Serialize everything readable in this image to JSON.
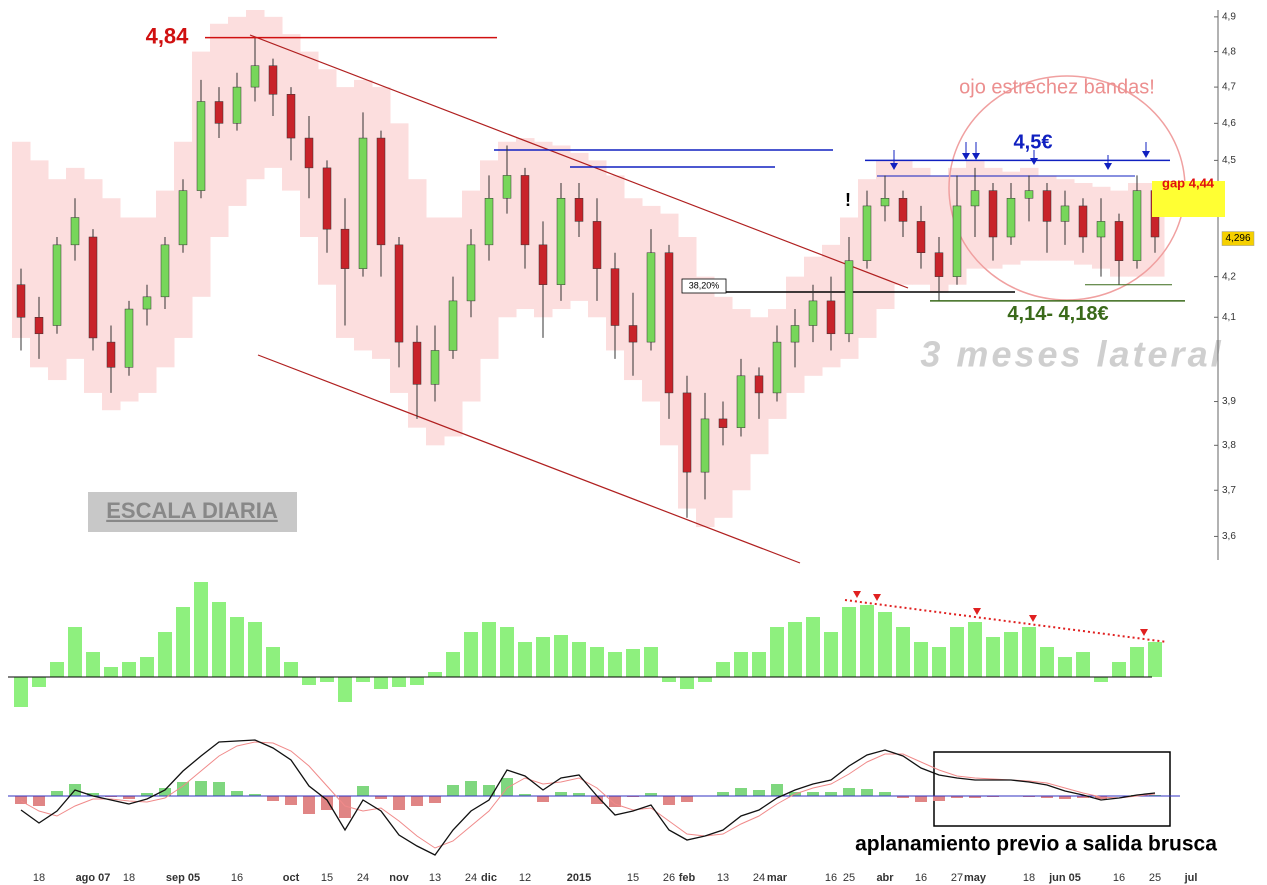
{
  "chart_data": [
    {
      "type": "candlestick",
      "categories": [
        null,
        "18",
        null,
        null,
        "ago 07",
        null,
        "18",
        null,
        null,
        "sep 05",
        null,
        null,
        "16",
        null,
        null,
        "oct",
        null,
        "15",
        null,
        "24",
        null,
        "nov",
        null,
        "13",
        null,
        "24",
        "dic",
        null,
        "12",
        null,
        null,
        "2015",
        null,
        null,
        "15",
        null,
        "26",
        "feb",
        null,
        "13",
        null,
        "24",
        "mar",
        null,
        null,
        "16",
        "25",
        null,
        "abr",
        null,
        "16",
        null,
        "27",
        "may",
        null,
        null,
        "18",
        null,
        "jun 05",
        null,
        null,
        "16",
        null,
        "25",
        null,
        "jul"
      ],
      "open": [
        4.18,
        4.1,
        4.08,
        4.28,
        4.3,
        4.04,
        3.98,
        4.12,
        4.15,
        4.28,
        4.42,
        4.66,
        4.6,
        4.7,
        4.76,
        4.68,
        4.56,
        4.48,
        4.32,
        4.22,
        4.56,
        4.28,
        4.04,
        3.94,
        4.02,
        4.14,
        4.28,
        4.4,
        4.46,
        4.28,
        4.18,
        4.4,
        4.34,
        4.22,
        4.08,
        4.04,
        4.26,
        3.92,
        3.74,
        3.86,
        3.84,
        3.96,
        3.92,
        4.04,
        4.08,
        4.14,
        4.06,
        4.24,
        4.38,
        4.4,
        4.34,
        4.26,
        4.2,
        4.38,
        4.42,
        4.3,
        4.4,
        4.42,
        4.34,
        4.38,
        4.3,
        4.34,
        4.24,
        4.42,
        null,
        null
      ],
      "high": [
        4.22,
        4.15,
        4.3,
        4.4,
        4.32,
        4.08,
        4.14,
        4.18,
        4.3,
        4.45,
        4.72,
        4.7,
        4.74,
        4.84,
        4.78,
        4.7,
        4.62,
        4.5,
        4.4,
        4.63,
        4.58,
        4.3,
        4.08,
        4.08,
        4.2,
        4.32,
        4.46,
        4.54,
        4.48,
        4.34,
        4.44,
        4.44,
        4.4,
        4.26,
        4.16,
        4.32,
        4.28,
        3.96,
        3.92,
        3.9,
        4.0,
        3.98,
        4.08,
        4.12,
        4.18,
        4.2,
        4.3,
        4.42,
        4.46,
        4.42,
        4.38,
        4.3,
        4.46,
        4.48,
        4.44,
        4.44,
        4.46,
        4.44,
        4.42,
        4.4,
        4.4,
        4.36,
        4.46,
        4.44,
        null,
        null
      ],
      "low": [
        4.02,
        4.0,
        4.06,
        4.24,
        4.02,
        3.92,
        3.96,
        4.08,
        4.12,
        4.26,
        4.4,
        4.56,
        4.58,
        4.66,
        4.62,
        4.5,
        4.4,
        4.26,
        4.08,
        4.2,
        4.2,
        3.98,
        3.86,
        3.9,
        4.0,
        4.1,
        4.24,
        4.36,
        4.22,
        4.05,
        4.14,
        4.3,
        4.14,
        4.0,
        3.96,
        4.02,
        3.86,
        3.64,
        3.68,
        3.8,
        3.82,
        3.86,
        3.9,
        3.98,
        4.04,
        4.02,
        4.04,
        4.22,
        4.34,
        4.3,
        4.22,
        4.14,
        4.18,
        4.3,
        4.24,
        4.28,
        4.34,
        4.26,
        4.28,
        4.26,
        4.2,
        4.18,
        4.22,
        4.26,
        null,
        null
      ],
      "close": [
        4.1,
        4.06,
        4.28,
        4.35,
        4.05,
        3.98,
        4.12,
        4.15,
        4.28,
        4.42,
        4.66,
        4.6,
        4.7,
        4.76,
        4.68,
        4.56,
        4.48,
        4.32,
        4.22,
        4.56,
        4.28,
        4.04,
        3.94,
        4.02,
        4.14,
        4.28,
        4.4,
        4.46,
        4.28,
        4.18,
        4.4,
        4.34,
        4.22,
        4.08,
        4.04,
        4.26,
        3.92,
        3.74,
        3.86,
        3.84,
        3.96,
        3.92,
        4.04,
        4.08,
        4.14,
        4.06,
        4.24,
        4.38,
        4.4,
        4.34,
        4.26,
        4.2,
        4.38,
        4.42,
        4.3,
        4.4,
        4.42,
        4.34,
        4.38,
        4.3,
        4.34,
        4.24,
        4.42,
        4.3,
        null,
        null
      ],
      "up_color": "#77d65a",
      "down_color": "#c8232a",
      "bands": {
        "color": "#fcdede",
        "upper": [
          4.55,
          4.5,
          4.45,
          4.48,
          4.45,
          4.4,
          4.35,
          4.35,
          4.42,
          4.55,
          4.8,
          4.88,
          4.9,
          4.92,
          4.9,
          4.85,
          4.8,
          4.75,
          4.7,
          4.72,
          4.7,
          4.6,
          4.45,
          4.35,
          4.35,
          4.42,
          4.5,
          4.55,
          4.56,
          4.55,
          4.54,
          4.52,
          4.5,
          4.46,
          4.4,
          4.38,
          4.36,
          4.3,
          4.2,
          4.15,
          4.12,
          4.1,
          4.12,
          4.2,
          4.25,
          4.28,
          4.35,
          4.45,
          4.5,
          4.5,
          4.48,
          4.46,
          4.48,
          4.5,
          4.48,
          4.47,
          4.48,
          4.46,
          4.45,
          4.44,
          4.43,
          4.42,
          4.44,
          4.44,
          null,
          null
        ],
        "lower": [
          4.05,
          3.98,
          3.95,
          4.0,
          3.92,
          3.88,
          3.9,
          3.92,
          3.98,
          4.05,
          4.15,
          4.3,
          4.38,
          4.45,
          4.48,
          4.42,
          4.3,
          4.18,
          4.05,
          4.02,
          4.0,
          3.92,
          3.84,
          3.8,
          3.82,
          3.9,
          4.0,
          4.1,
          4.12,
          4.1,
          4.12,
          4.14,
          4.1,
          4.02,
          3.95,
          3.9,
          3.8,
          3.66,
          3.62,
          3.64,
          3.7,
          3.78,
          3.86,
          3.92,
          3.96,
          3.98,
          4.0,
          4.05,
          4.12,
          4.18,
          4.18,
          4.16,
          4.18,
          4.22,
          4.22,
          4.23,
          4.24,
          4.24,
          4.24,
          4.23,
          4.22,
          4.2,
          4.2,
          4.2,
          null,
          null
        ]
      },
      "log_scale": true,
      "ylim": [
        3.55,
        4.92
      ],
      "yticks": [
        {
          "value": 3.6,
          "label": "3,6"
        },
        {
          "value": 3.7,
          "label": "3,7"
        },
        {
          "value": 3.8,
          "label": "3,8"
        },
        {
          "value": 3.9,
          "label": "3,9"
        },
        {
          "value": 4.1,
          "label": "4,1"
        },
        {
          "value": 4.2,
          "label": "4,2"
        },
        {
          "value": 4.5,
          "label": "4,5"
        },
        {
          "value": 4.6,
          "label": "4,6"
        },
        {
          "value": 4.7,
          "label": "4,7"
        },
        {
          "value": 4.8,
          "label": "4,8"
        },
        {
          "value": 4.9,
          "label": "4,9"
        }
      ],
      "last_price": {
        "value": 4.296,
        "label": "4,296"
      },
      "high_level": {
        "value": 4.84,
        "label": "4,84"
      },
      "resistance": {
        "value": 4.5,
        "label": "4,5€"
      },
      "gap": {
        "value": 4.44,
        "label": "gap 4,44"
      },
      "support": {
        "values": [
          4.14,
          4.18
        ],
        "label": "4,14- 4,18€"
      },
      "annotations": [
        "ojo estrechez bandas!",
        "3 meses lateral",
        "ESCALA DIARIA",
        "38,20%",
        "!"
      ]
    },
    {
      "type": "bar",
      "ylim": [
        -48,
        102
      ],
      "up_color": "#8ef07e",
      "down_color": "#8ef07e",
      "values": [
        -30,
        -10,
        15,
        50,
        25,
        10,
        15,
        20,
        45,
        70,
        95,
        75,
        60,
        55,
        30,
        15,
        -8,
        -5,
        -25,
        -5,
        -12,
        -10,
        -8,
        5,
        25,
        45,
        55,
        50,
        35,
        40,
        42,
        35,
        30,
        25,
        28,
        30,
        -5,
        -12,
        -5,
        15,
        25,
        25,
        50,
        55,
        60,
        45,
        70,
        72,
        65,
        50,
        35,
        30,
        50,
        55,
        40,
        45,
        50,
        30,
        20,
        25,
        -5,
        15,
        30,
        35,
        null,
        null
      ]
    },
    {
      "type": "macd",
      "ylim": [
        -69,
        61
      ],
      "up_color": "#7fd77f",
      "down_color": "#e08585",
      "macd_color": "#111111",
      "signal_color": "#f08a8a",
      "histogram": [
        -8,
        -10,
        5,
        12,
        3,
        -1,
        -3,
        3,
        8,
        14,
        15,
        14,
        5,
        2,
        -5,
        -9,
        -18,
        -14,
        -22,
        10,
        -3,
        -14,
        -10,
        -7,
        11,
        15,
        11,
        18,
        2,
        -6,
        4,
        3,
        -8,
        -11,
        -1,
        3,
        -9,
        -6,
        0,
        4,
        8,
        6,
        12,
        4,
        4,
        4,
        8,
        7,
        4,
        -2,
        -6,
        -5,
        -2,
        -2,
        -1,
        0,
        -1,
        -2,
        -3,
        -2,
        -3,
        0,
        1,
        1,
        null,
        null
      ],
      "macd": [
        -14,
        -27,
        -15,
        6,
        0,
        -4,
        -8,
        -3,
        6,
        25,
        40,
        54,
        55,
        56,
        48,
        36,
        10,
        -4,
        -34,
        -4,
        -15,
        -39,
        -50,
        -59,
        -34,
        -15,
        -4,
        26,
        20,
        6,
        18,
        21,
        0,
        -19,
        -15,
        -9,
        -34,
        -44,
        -40,
        -34,
        -20,
        -14,
        -2,
        6,
        12,
        16,
        30,
        41,
        46,
        40,
        28,
        21,
        18,
        16,
        16,
        16,
        14,
        11,
        5,
        1,
        -4,
        -2,
        1,
        3,
        null,
        null
      ],
      "signal": [
        -5,
        -15,
        -20,
        -10,
        -3,
        -3,
        -5,
        -6,
        -2,
        10,
        25,
        40,
        50,
        54,
        53,
        45,
        30,
        10,
        -10,
        -15,
        -12,
        -25,
        -40,
        -52,
        -45,
        -30,
        -15,
        8,
        18,
        12,
        14,
        18,
        8,
        -8,
        -14,
        -12,
        -25,
        -38,
        -40,
        -38,
        -28,
        -20,
        -8,
        2,
        8,
        12,
        22,
        34,
        42,
        42,
        34,
        26,
        20,
        18,
        17,
        16,
        15,
        13,
        8,
        3,
        -1,
        -2,
        0,
        2,
        null,
        null
      ],
      "annotation": "aplanamiento previo a salida brusca"
    }
  ]
}
